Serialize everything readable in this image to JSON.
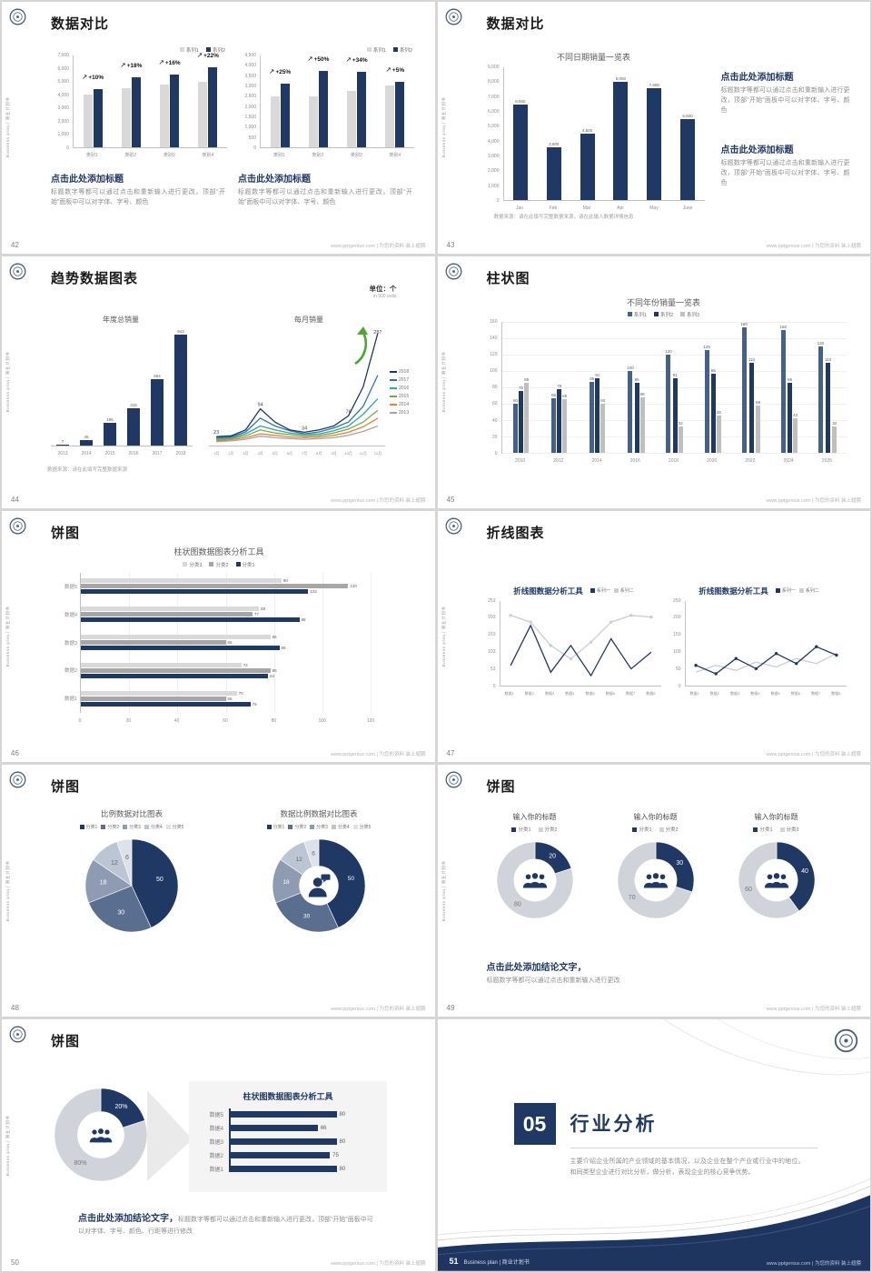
{
  "common": {
    "sidebar_text": "Business plan | 商业计划书",
    "footer_site": "www.pptgenius.com | 为您的资料 装上翅膀",
    "caption_heading": "点击此处添加标题",
    "body_placeholder": "标题数字等都可以通过点击和重新输入进行更改，顶部“开始”面板中可以对字体、字号、颜色",
    "brand_navy": "#1f3864"
  },
  "slides": {
    "s42": {
      "page": "42",
      "title": "数据对比",
      "left_chart": {
        "type": "bar",
        "legend": [
          {
            "name": "系列1",
            "color": "#d9d9d9"
          },
          {
            "name": "系列2",
            "color": "#1f3864"
          }
        ],
        "yticks": [
          "7,000",
          "6,000",
          "5,000",
          "4,000",
          "3,000",
          "2,000",
          "1,000",
          "0"
        ],
        "ymax": 7000,
        "categories": [
          "类别1",
          "类别2",
          "类别3",
          "类别4"
        ],
        "series": [
          {
            "name": "系列1",
            "color": "#d9d9d9",
            "values": [
              4000,
              4500,
              4800,
              5000
            ]
          },
          {
            "name": "系列2",
            "color": "#1f3864",
            "values": [
              4400,
              5310,
              5570,
              6100
            ]
          }
        ],
        "annotations": [
          "+10%",
          "+18%",
          "+16%",
          "+22%"
        ]
      },
      "right_chart": {
        "type": "bar",
        "legend": [
          {
            "name": "系列1",
            "color": "#d9d9d9"
          },
          {
            "name": "系列2",
            "color": "#1f3864"
          }
        ],
        "yticks": [
          "4,500",
          "4,000",
          "3,500",
          "3,000",
          "2,500",
          "2,000",
          "1,500",
          "1,000",
          "500",
          "0"
        ],
        "ymax": 4500,
        "categories": [
          "类别1",
          "类别2",
          "类别3",
          "类别4"
        ],
        "series": [
          {
            "name": "系列1",
            "color": "#d9d9d9",
            "values": [
              2500,
              2500,
              2750,
              3050
            ]
          },
          {
            "name": "系列2",
            "color": "#1f3864",
            "values": [
              3125,
              3750,
              3685,
              3200
            ]
          }
        ],
        "annotations": [
          "+25%",
          "+50%",
          "+34%",
          "+5%"
        ]
      }
    },
    "s43": {
      "page": "43",
      "title": "数据对比",
      "chart": {
        "type": "bar",
        "title": "不同日期销量一览表",
        "yticks": [
          "9,000",
          "8,000",
          "7,000",
          "6,000",
          "5,000",
          "4,000",
          "3,000",
          "2,000",
          "1,000",
          "0"
        ],
        "ymax": 9000,
        "categories": [
          "Jan",
          "Feb",
          "Mar",
          "Apr",
          "May",
          "June"
        ],
        "series": [
          {
            "name": "销量",
            "color": "#1f3864",
            "values": [
              6500,
              3600,
              4500,
              8000,
              7600,
              5500
            ],
            "labels": [
              "6,500",
              "3,600",
              "4,500",
              "8,000",
              "7,600",
              "5,500"
            ]
          }
        ]
      },
      "source": "数据来源：请在此填写完整数据来源，请在此输入数据详情信息"
    },
    "s44": {
      "page": "44",
      "title": "趋势数据图表",
      "unit": "单位：个",
      "unit_sub": "in 900 units",
      "bar_chart": {
        "type": "bar",
        "title": "年度总销量",
        "ymax": 1000,
        "categories": [
          "2013",
          "2014",
          "2015",
          "2016",
          "2017",
          "2018"
        ],
        "series": [
          {
            "name": "销量",
            "color": "#1f3864",
            "values": [
              7,
              45,
              196,
              316,
              564,
              943
            ],
            "labels": [
              "7",
              "45",
              "196",
              "316",
              "564",
              "943"
            ]
          }
        ]
      },
      "line_chart": {
        "type": "line",
        "title": "每月销量",
        "ymax": 300,
        "categories": [
          "1月",
          "2月",
          "3月",
          "4月",
          "5月",
          "6月",
          "7月",
          "8月",
          "9月",
          "10月",
          "11月",
          "12月"
        ],
        "legend": [
          {
            "name": "2018",
            "color": "#1f3864"
          },
          {
            "name": "2017",
            "color": "#2e75b6"
          },
          {
            "name": "2016",
            "color": "#31a8a0"
          },
          {
            "name": "2015",
            "color": "#70ad47"
          },
          {
            "name": "2014",
            "color": "#ed7d31"
          },
          {
            "name": "2013",
            "color": "#a5a5a5"
          }
        ],
        "series": [
          {
            "name": "2018",
            "color": "#1f3864",
            "values": [
              23,
              25,
              40,
              94,
              60,
              40,
              34,
              40,
              50,
              76,
              150,
              287
            ]
          },
          {
            "name": "2017",
            "color": "#2e75b6",
            "values": [
              20,
              22,
              35,
              70,
              50,
              38,
              30,
              35,
              45,
              60,
              100,
              180
            ]
          },
          {
            "name": "2016",
            "color": "#31a8a0",
            "values": [
              18,
              20,
              30,
              50,
              40,
              32,
              28,
              30,
              38,
              50,
              80,
              120
            ]
          },
          {
            "name": "2015",
            "color": "#70ad47",
            "values": [
              15,
              18,
              25,
              40,
              32,
              28,
              24,
              26,
              32,
              42,
              60,
              90
            ]
          },
          {
            "name": "2014",
            "color": "#ed7d31",
            "values": [
              12,
              15,
              20,
              30,
              26,
              22,
              20,
              22,
              26,
              34,
              48,
              70
            ]
          },
          {
            "name": "2013",
            "color": "#a5a5a5",
            "values": [
              10,
              12,
              16,
              24,
              20,
              18,
              16,
              18,
              20,
              26,
              36,
              50
            ]
          }
        ],
        "point_labels": [
          {
            "si": 0,
            "i": 0,
            "text": "23"
          },
          {
            "si": 0,
            "i": 3,
            "text": "94"
          },
          {
            "si": 0,
            "i": 6,
            "text": "34"
          },
          {
            "si": 0,
            "i": 9,
            "text": "76"
          },
          {
            "si": 0,
            "i": 11,
            "text": "287"
          }
        ]
      },
      "source": "数据来源：请在此填写完整数据来源"
    },
    "s45": {
      "page": "45",
      "title": "柱状图",
      "chart": {
        "type": "bar",
        "title": "不同年份销量一览表",
        "grid": true,
        "show_values": true,
        "ymax": 160,
        "yticks": [
          "160",
          "140",
          "120",
          "100",
          "80",
          "60",
          "40",
          "20",
          "0"
        ],
        "legend": [
          {
            "name": "系列1",
            "color": "#44618e"
          },
          {
            "name": "系列2",
            "color": "#1f3864"
          },
          {
            "name": "系列3",
            "color": "#bfbfbf"
          }
        ],
        "categories": [
          "2010",
          "2012",
          "2014",
          "2016",
          "2018",
          "2020",
          "2022",
          "2024",
          "2026"
        ],
        "series": [
          {
            "name": "系列1",
            "color": "#44618e",
            "values": [
              60,
              66,
              86,
              100,
              120,
              125,
              160,
              150,
              130
            ]
          },
          {
            "name": "系列2",
            "color": "#1f3864",
            "values": [
              75,
              78,
              91,
              85,
              91,
              96,
              110,
              85,
              110
            ]
          },
          {
            "name": "系列3",
            "color": "#bfbfbf",
            "values": [
              85,
              65,
              60,
              68,
              32,
              45,
              58,
              42,
              32
            ]
          }
        ]
      }
    },
    "s46": {
      "page": "46",
      "title": "饼图",
      "chart": {
        "type": "hbar",
        "title": "柱状图数据图表分析工具",
        "legend": [
          {
            "name": "分类3",
            "color": "#d9d9d9"
          },
          {
            "name": "分类2",
            "color": "#a6a6a6"
          },
          {
            "name": "分类1",
            "color": "#1f3864"
          }
        ],
        "xticks": [
          "0",
          "20",
          "40",
          "60",
          "80",
          "100",
          "120"
        ],
        "xmax": 130,
        "categories": [
          "数据5",
          "数据4",
          "数据3",
          "数据2",
          "数据1"
        ],
        "series": [
          {
            "name": "分类3",
            "color": "#d9d9d9",
            "values": [
              90,
              80,
              85,
              72,
              70
            ]
          },
          {
            "name": "分类2",
            "color": "#a6a6a6",
            "values": [
              120,
              77,
              65,
              85,
              65
            ]
          },
          {
            "name": "分类1",
            "color": "#1f3864",
            "values": [
              102,
              98,
              89,
              84,
              76
            ]
          }
        ]
      }
    },
    "s47": {
      "page": "47",
      "title": "折线图表",
      "charts": [
        {
          "type": "line",
          "title": "折线图数据分析工具",
          "legend": [
            {
              "name": "系列一",
              "color": "#1f3864"
            },
            {
              "name": "系列二",
              "color": "#c9cdd6"
            }
          ],
          "yticks": [
            "253",
            "203",
            "153",
            "103",
            "53",
            "0"
          ],
          "ymax": 253,
          "categories": [
            "数据1",
            "数据2",
            "数据3",
            "数据4",
            "数据5",
            "数据6",
            "数据7",
            "数据8"
          ],
          "series": [
            {
              "name": "系列一",
              "color": "#1f3864",
              "values": [
                60,
                180,
                40,
                120,
                30,
                140,
                50,
                100
              ]
            },
            {
              "name": "系列二",
              "color": "#c9cdd6",
              "values": [
                210,
                190,
                120,
                80,
                130,
                190,
                210,
                205
              ],
              "markers": true
            }
          ]
        },
        {
          "type": "line",
          "title": "折线图数据分析工具",
          "legend": [
            {
              "name": "系列一",
              "color": "#1f3864"
            },
            {
              "name": "系列二",
              "color": "#c9cdd6"
            }
          ],
          "yticks": [
            "250",
            "200",
            "150",
            "100",
            "50",
            "0"
          ],
          "ymax": 250,
          "categories": [
            "数据1",
            "数据2",
            "数据3",
            "数据4",
            "数据5",
            "数据6",
            "数据7",
            "数据8"
          ],
          "series": [
            {
              "name": "系列一",
              "color": "#1f3864",
              "values": [
                60,
                35,
                80,
                50,
                95,
                65,
                115,
                90
              ],
              "markers": true
            },
            {
              "name": "系列二",
              "color": "#c9cdd6",
              "values": [
                40,
                60,
                45,
                70,
                55,
                80,
                65,
                95
              ]
            }
          ]
        }
      ]
    },
    "s48": {
      "page": "48",
      "title": "饼图",
      "left": {
        "title": "比例数据对比图表",
        "legend": [
          {
            "name": "分类1",
            "color": "#1f3864"
          },
          {
            "name": "分类2",
            "color": "#5a6e8f"
          },
          {
            "name": "分类3",
            "color": "#8e9bb3"
          },
          {
            "name": "分类4",
            "color": "#bcc5d4"
          },
          {
            "name": "分类5",
            "color": "#dde2ea"
          }
        ],
        "chart": {
          "type": "pie",
          "values": [
            50,
            30,
            18,
            12,
            6
          ],
          "labels": [
            "50",
            "30",
            "18",
            "12",
            "6"
          ],
          "colors": [
            "#1f3864",
            "#5a6e8f",
            "#8e9bb3",
            "#bcc5d4",
            "#dde2ea"
          ],
          "label_colors": [
            "#ffffff",
            "#ffffff",
            "#ffffff",
            "#666666",
            "#666666"
          ],
          "label_size": 7
        }
      },
      "right": {
        "title": "数据比例数据对比图表",
        "legend": [
          {
            "name": "分类1",
            "color": "#1f3864"
          },
          {
            "name": "分类2",
            "color": "#5a6e8f"
          },
          {
            "name": "分类3",
            "color": "#8e9bb3"
          },
          {
            "name": "分类4",
            "color": "#bcc5d4"
          },
          {
            "name": "分类5",
            "color": "#dde2ea"
          }
        ],
        "chart": {
          "type": "donut",
          "inner": 0.42,
          "values": [
            50,
            30,
            18,
            12,
            6
          ],
          "labels": [
            "50",
            "30",
            "18",
            "12",
            "6"
          ],
          "colors": [
            "#1f3864",
            "#5a6e8f",
            "#8e9bb3",
            "#bcc5d4",
            "#dde2ea"
          ],
          "label_colors": [
            "#ffffff",
            "#ffffff",
            "#ffffff",
            "#666666",
            "#666666"
          ],
          "label_size": 6.5
        }
      }
    },
    "s49": {
      "page": "49",
      "title": "饼图",
      "donuts": [
        {
          "title": "输入你的标题",
          "legend": [
            {
              "name": "分类1",
              "color": "#1f3864"
            },
            {
              "name": "分类2",
              "color": "#d0d3da"
            }
          ],
          "chart": {
            "type": "donut",
            "inner": 0.55,
            "values": [
              20,
              80
            ],
            "labels": [
              "20",
              "80"
            ],
            "colors": [
              "#1f3864",
              "#d0d3da"
            ],
            "label_colors": [
              "#ffffff",
              "#777777"
            ],
            "label_size": 7
          }
        },
        {
          "title": "输入你的标题",
          "legend": [
            {
              "name": "分类1",
              "color": "#1f3864"
            },
            {
              "name": "分类2",
              "color": "#d0d3da"
            }
          ],
          "chart": {
            "type": "donut",
            "inner": 0.55,
            "values": [
              30,
              70
            ],
            "labels": [
              "30",
              "70"
            ],
            "colors": [
              "#1f3864",
              "#d0d3da"
            ],
            "label_colors": [
              "#ffffff",
              "#777777"
            ],
            "label_size": 7
          }
        },
        {
          "title": "输入你的标题",
          "legend": [
            {
              "name": "分类1",
              "color": "#1f3864"
            },
            {
              "name": "分类2",
              "color": "#d0d3da"
            }
          ],
          "chart": {
            "type": "donut",
            "inner": 0.55,
            "values": [
              40,
              60
            ],
            "labels": [
              "40",
              "60"
            ],
            "colors": [
              "#1f3864",
              "#d0d3da"
            ],
            "label_colors": [
              "#ffffff",
              "#777777"
            ],
            "label_size": 7
          }
        }
      ],
      "conclusion_bold": "点击此处添加结论文字，",
      "conclusion_body": "标题数字等都可以通过点击和重新输入进行更改"
    },
    "s50": {
      "page": "50",
      "title": "饼图",
      "donut": {
        "type": "donut",
        "inner": 0.5,
        "values": [
          20,
          80
        ],
        "labels": [
          "20%",
          "80%"
        ],
        "colors": [
          "#1f3864",
          "#d0d3da"
        ],
        "label_colors": [
          "#ffffff",
          "#777777"
        ],
        "label_size": 7
      },
      "panel": {
        "title": "柱状图数据图表分析工具",
        "max": 100,
        "rows": [
          {
            "label": "数据5",
            "value": 80
          },
          {
            "label": "数据4",
            "value": 66
          },
          {
            "label": "数据3",
            "value": 80
          },
          {
            "label": "数据2",
            "value": 75
          },
          {
            "label": "数据1",
            "value": 80
          }
        ]
      },
      "conclusion_bold": "点击此处添加结论文字，",
      "conclusion_body": "标题数字等都可以通过点击和重新输入进行更改，顶部“开始”面板中可以对字体、字号、颜色、行距等进行修改"
    },
    "s51": {
      "page": "51",
      "number": "05",
      "title": "行业分析",
      "body": "主要介绍企业所属的产业领域的基本情况，以及企业在整个产业或行业中的地位。和同类型企业进行对比分析，做分析，表现企业的核心竞争优势。",
      "footer_text": "Business plan | 商业计划书"
    }
  }
}
